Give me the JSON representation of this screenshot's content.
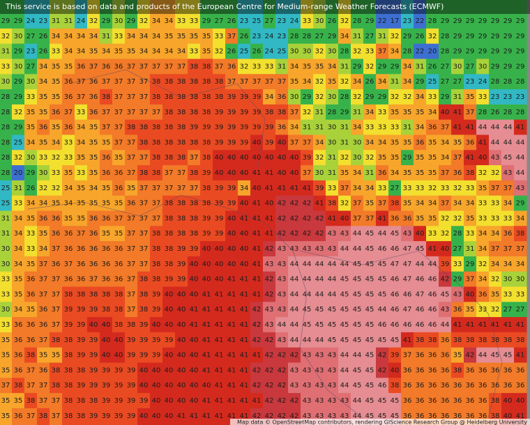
{
  "header": {
    "notice": "This service is based on data and products of the European Centre for Medium-range Weather Forecasts (ECMWF)"
  },
  "footer": {
    "attribution": "Map data © OpenStreetMap contributors, rendering GIScience Research Group @ Heidelberg University"
  },
  "color_scale": [
    {
      "min": 0,
      "color": "#3d6fd1"
    },
    {
      "min": 23,
      "color": "#31b8c4"
    },
    {
      "min": 26,
      "color": "#37b24a"
    },
    {
      "min": 30,
      "color": "#a9d23a"
    },
    {
      "min": 32,
      "color": "#f3df2e"
    },
    {
      "min": 34,
      "color": "#f7a52b"
    },
    {
      "min": 36,
      "color": "#f27a28"
    },
    {
      "min": 38,
      "color": "#ea4a22"
    },
    {
      "min": 40,
      "color": "#d42a1e"
    },
    {
      "min": 42,
      "color": "#c8383c"
    },
    {
      "min": 43,
      "color": "#df6f73"
    },
    {
      "min": 44,
      "color": "#e58d92"
    }
  ],
  "grid": [
    [
      29,
      29,
      24,
      23,
      31,
      31,
      24,
      32,
      29,
      30,
      29,
      32,
      34,
      34,
      33,
      33,
      29,
      27,
      26,
      23,
      25,
      27,
      23,
      24,
      33,
      30,
      26,
      32,
      28,
      29,
      22,
      17,
      23,
      22,
      28,
      29,
      29,
      29,
      29,
      29,
      29,
      29
    ],
    [
      32,
      30,
      27,
      26,
      34,
      34,
      34,
      34,
      31,
      33,
      34,
      34,
      34,
      35,
      35,
      35,
      35,
      33,
      37,
      26,
      23,
      24,
      23,
      28,
      28,
      27,
      29,
      34,
      31,
      27,
      31,
      32,
      29,
      26,
      32,
      28,
      29,
      29,
      29,
      29,
      29,
      29
    ],
    [
      31,
      29,
      23,
      26,
      33,
      34,
      34,
      35,
      34,
      35,
      35,
      34,
      34,
      34,
      34,
      33,
      35,
      32,
      26,
      25,
      26,
      24,
      25,
      30,
      30,
      32,
      30,
      28,
      32,
      33,
      37,
      34,
      28,
      22,
      20,
      28,
      29,
      29,
      29,
      29,
      29,
      29
    ],
    [
      33,
      30,
      27,
      34,
      35,
      35,
      36,
      37,
      36,
      36,
      37,
      37,
      37,
      37,
      37,
      38,
      38,
      37,
      36,
      32,
      33,
      33,
      31,
      34,
      35,
      35,
      34,
      31,
      29,
      32,
      29,
      29,
      34,
      31,
      26,
      27,
      30,
      27,
      30,
      29,
      29,
      29
    ],
    [
      30,
      29,
      30,
      34,
      35,
      36,
      37,
      36,
      37,
      37,
      37,
      37,
      38,
      38,
      38,
      38,
      38,
      38,
      37,
      37,
      37,
      37,
      37,
      35,
      34,
      32,
      35,
      32,
      34,
      26,
      34,
      31,
      34,
      29,
      25,
      27,
      27,
      23,
      24,
      28,
      28,
      28
    ],
    [
      28,
      29,
      33,
      35,
      35,
      36,
      37,
      36,
      38,
      37,
      37,
      37,
      38,
      38,
      38,
      38,
      38,
      38,
      39,
      39,
      39,
      34,
      36,
      30,
      29,
      32,
      30,
      28,
      32,
      29,
      29,
      32,
      32,
      34,
      33,
      29,
      31,
      35,
      33,
      23,
      23,
      23
    ],
    [
      28,
      32,
      35,
      35,
      36,
      37,
      33,
      36,
      37,
      37,
      37,
      37,
      37,
      38,
      38,
      38,
      38,
      39,
      39,
      39,
      39,
      38,
      38,
      37,
      32,
      31,
      28,
      29,
      31,
      34,
      33,
      35,
      35,
      35,
      34,
      40,
      41,
      37,
      28,
      26,
      28,
      28
    ],
    [
      28,
      29,
      35,
      36,
      35,
      36,
      34,
      35,
      37,
      37,
      38,
      38,
      38,
      38,
      38,
      39,
      39,
      39,
      39,
      39,
      39,
      39,
      36,
      34,
      31,
      31,
      30,
      31,
      34,
      33,
      33,
      33,
      31,
      34,
      36,
      37,
      41,
      41,
      44,
      44,
      44,
      41
    ],
    [
      28,
      25,
      34,
      35,
      34,
      33,
      34,
      35,
      35,
      37,
      37,
      38,
      38,
      38,
      38,
      38,
      38,
      39,
      39,
      39,
      40,
      39,
      40,
      37,
      37,
      34,
      30,
      31,
      30,
      34,
      34,
      35,
      35,
      36,
      35,
      34,
      35,
      36,
      41,
      44,
      44,
      44
    ],
    [
      28,
      32,
      30,
      33,
      32,
      33,
      35,
      35,
      36,
      35,
      37,
      37,
      38,
      38,
      38,
      37,
      38,
      40,
      40,
      40,
      40,
      40,
      40,
      40,
      39,
      32,
      31,
      32,
      30,
      32,
      35,
      35,
      29,
      35,
      35,
      34,
      37,
      41,
      40,
      43,
      45,
      44
    ],
    [
      28,
      20,
      29,
      30,
      33,
      35,
      33,
      35,
      36,
      36,
      37,
      38,
      38,
      37,
      37,
      38,
      39,
      40,
      40,
      40,
      41,
      41,
      40,
      40,
      37,
      30,
      31,
      35,
      34,
      31,
      36,
      34,
      35,
      35,
      35,
      37,
      36,
      38,
      32,
      32,
      43,
      44
    ],
    [
      25,
      31,
      26,
      32,
      32,
      34,
      35,
      34,
      35,
      36,
      35,
      37,
      37,
      37,
      37,
      37,
      38,
      39,
      39,
      34,
      40,
      41,
      41,
      41,
      41,
      39,
      33,
      37,
      34,
      34,
      33,
      27,
      33,
      33,
      32,
      33,
      32,
      33,
      35,
      37,
      37,
      43
    ],
    [
      25,
      33,
      34,
      34,
      35,
      34,
      35,
      35,
      35,
      35,
      36,
      37,
      37,
      38,
      38,
      38,
      38,
      39,
      39,
      40,
      41,
      40,
      42,
      42,
      42,
      41,
      38,
      32,
      37,
      35,
      37,
      38,
      35,
      34,
      34,
      37,
      34,
      34,
      33,
      33,
      34,
      29
    ],
    [
      31,
      34,
      35,
      36,
      36,
      35,
      35,
      36,
      36,
      37,
      37,
      37,
      37,
      38,
      38,
      38,
      39,
      39,
      40,
      41,
      41,
      41,
      42,
      42,
      42,
      42,
      41,
      40,
      37,
      37,
      41,
      36,
      36,
      35,
      35,
      32,
      32,
      35,
      33,
      33,
      33,
      34
    ],
    [
      31,
      34,
      33,
      35,
      36,
      36,
      37,
      36,
      35,
      35,
      37,
      37,
      38,
      38,
      38,
      38,
      39,
      39,
      40,
      40,
      41,
      41,
      42,
      42,
      42,
      42,
      43,
      43,
      44,
      45,
      44,
      45,
      43,
      40,
      33,
      32,
      28,
      33,
      34,
      34,
      36,
      38
    ],
    [
      30,
      34,
      33,
      34,
      37,
      36,
      36,
      36,
      36,
      36,
      37,
      37,
      38,
      38,
      39,
      39,
      40,
      40,
      40,
      40,
      41,
      42,
      43,
      43,
      43,
      43,
      43,
      44,
      44,
      45,
      46,
      46,
      47,
      45,
      41,
      40,
      27,
      31,
      34,
      37,
      37,
      37
    ],
    [
      30,
      34,
      35,
      37,
      36,
      37,
      36,
      36,
      36,
      36,
      37,
      37,
      38,
      38,
      39,
      40,
      40,
      40,
      40,
      40,
      41,
      43,
      43,
      44,
      44,
      44,
      44,
      44,
      45,
      45,
      45,
      47,
      47,
      44,
      44,
      39,
      33,
      29,
      32,
      34,
      34,
      34
    ],
    [
      33,
      35,
      36,
      37,
      37,
      36,
      36,
      37,
      36,
      36,
      37,
      38,
      38,
      39,
      39,
      40,
      40,
      40,
      41,
      41,
      41,
      42,
      43,
      44,
      44,
      44,
      44,
      45,
      45,
      45,
      45,
      46,
      47,
      46,
      46,
      42,
      29,
      37,
      34,
      32,
      30,
      30
    ],
    [
      33,
      35,
      36,
      37,
      37,
      38,
      38,
      38,
      38,
      38,
      37,
      38,
      39,
      40,
      40,
      40,
      41,
      41,
      41,
      41,
      41,
      42,
      43,
      44,
      44,
      44,
      44,
      45,
      45,
      45,
      45,
      46,
      46,
      47,
      46,
      45,
      43,
      40,
      36,
      35,
      33,
      33
    ],
    [
      30,
      34,
      35,
      36,
      37,
      39,
      39,
      39,
      38,
      38,
      37,
      38,
      39,
      40,
      40,
      41,
      41,
      41,
      41,
      41,
      42,
      43,
      43,
      44,
      45,
      45,
      45,
      45,
      45,
      45,
      44,
      46,
      47,
      46,
      46,
      43,
      36,
      35,
      33,
      32,
      27,
      27
    ],
    [
      33,
      36,
      36,
      36,
      37,
      39,
      39,
      40,
      40,
      38,
      38,
      39,
      40,
      40,
      40,
      41,
      41,
      41,
      41,
      41,
      42,
      43,
      44,
      44,
      45,
      45,
      45,
      45,
      45,
      45,
      46,
      46,
      46,
      46,
      46,
      44,
      41,
      41,
      41,
      41,
      41,
      41
    ],
    [
      35,
      36,
      36,
      37,
      38,
      38,
      39,
      39,
      40,
      40,
      39,
      39,
      39,
      39,
      40,
      40,
      41,
      41,
      41,
      41,
      42,
      42,
      43,
      44,
      44,
      44,
      45,
      45,
      45,
      45,
      45,
      45,
      41,
      38,
      38,
      36,
      38,
      38,
      38,
      38,
      38,
      38
    ],
    [
      35,
      36,
      38,
      35,
      35,
      38,
      39,
      39,
      40,
      40,
      39,
      39,
      39,
      40,
      40,
      40,
      41,
      41,
      41,
      41,
      41,
      42,
      42,
      42,
      43,
      43,
      43,
      44,
      44,
      45,
      42,
      39,
      37,
      36,
      36,
      36,
      35,
      42,
      44,
      45,
      45,
      41
    ],
    [
      35,
      36,
      37,
      36,
      38,
      38,
      38,
      39,
      39,
      39,
      39,
      40,
      40,
      40,
      40,
      40,
      41,
      41,
      41,
      41,
      42,
      42,
      42,
      43,
      43,
      43,
      43,
      44,
      45,
      45,
      42,
      40,
      36,
      36,
      36,
      36,
      38,
      36,
      36,
      36,
      36,
      36
    ],
    [
      37,
      38,
      37,
      37,
      38,
      38,
      39,
      39,
      39,
      39,
      39,
      40,
      40,
      40,
      40,
      40,
      40,
      41,
      41,
      41,
      42,
      42,
      42,
      43,
      43,
      43,
      43,
      44,
      45,
      45,
      46,
      38,
      36,
      36,
      36,
      36,
      36,
      36,
      36,
      36,
      36,
      36
    ],
    [
      35,
      35,
      38,
      37,
      37,
      38,
      38,
      38,
      39,
      39,
      39,
      39,
      40,
      40,
      40,
      40,
      41,
      41,
      41,
      41,
      41,
      42,
      42,
      42,
      43,
      43,
      43,
      43,
      44,
      45,
      45,
      45,
      36,
      36,
      36,
      36,
      36,
      36,
      36,
      38,
      40,
      40
    ],
    [
      35,
      36,
      37,
      38,
      37,
      38,
      38,
      39,
      39,
      39,
      39,
      40,
      40,
      40,
      41,
      41,
      41,
      41,
      41,
      41,
      42,
      42,
      42,
      42,
      43,
      43,
      43,
      43,
      44,
      45,
      45,
      45,
      36,
      36,
      36,
      36,
      36,
      36,
      36,
      38,
      40,
      41
    ]
  ]
}
